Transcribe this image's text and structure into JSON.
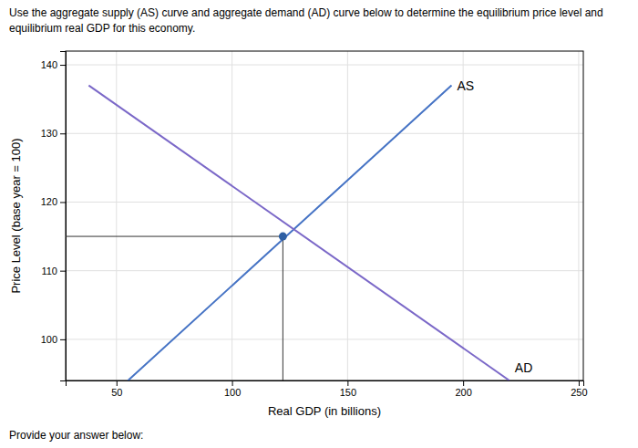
{
  "chart_data": {
    "type": "line",
    "title": "Use the aggregate supply (AS) curve and aggregate demand (AD) curve below to determine the equilibrium price level and",
    "subtitle": "equilibrium real GDP for this economy.",
    "x_label": "Real GDP (in billions)",
    "y_label": "Price Level (base year = 100)",
    "annotations": [
      "Provide your answer below:"
    ],
    "xlim": [
      28,
      252
    ],
    "ylim": [
      94,
      142
    ],
    "xticks": [
      50,
      100,
      150,
      200,
      250
    ],
    "yticks": [
      100,
      110,
      120,
      130,
      140
    ],
    "grid": true,
    "series": [
      {
        "name": "AS",
        "color": "#4472c4",
        "x": [
          55,
          195
        ],
        "values": [
          94,
          137
        ]
      },
      {
        "name": "AD",
        "color": "#7b68c8",
        "x": [
          38,
          220
        ],
        "values": [
          137,
          94
        ]
      }
    ],
    "equilibrium": {
      "x": 122,
      "y": 115,
      "color": "#2e5fa3"
    }
  }
}
